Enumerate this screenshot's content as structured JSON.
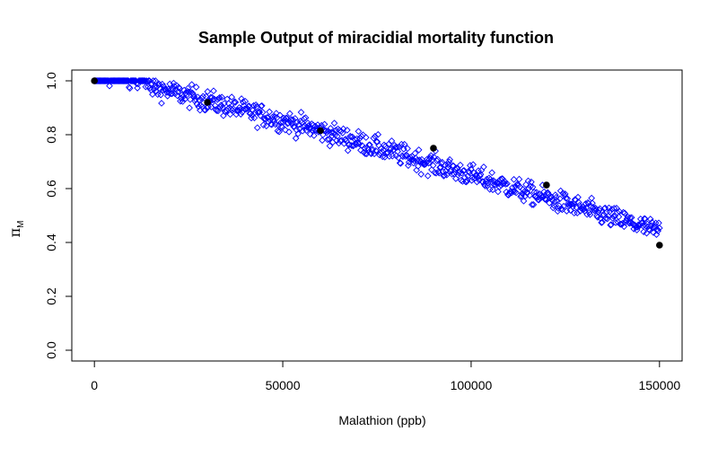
{
  "chart_data": {
    "type": "scatter",
    "title": "Sample Output of miracidial mortality function",
    "xlabel": "Malathion (ppb)",
    "ylabel": "π",
    "ylabel_subscript": "M",
    "xlim": [
      -6000,
      156000
    ],
    "ylim": [
      -0.04,
      1.04
    ],
    "xticks": [
      0,
      50000,
      100000,
      150000
    ],
    "yticks": [
      0.0,
      0.2,
      0.4,
      0.6,
      0.8,
      1.0
    ],
    "grid": false,
    "legend": "none",
    "colors": {
      "sample_points": "#0000ff",
      "mean_points": "#000000"
    },
    "mean_points": {
      "x": [
        0,
        30000,
        60000,
        90000,
        120000,
        150000
      ],
      "y": [
        1.0,
        0.92,
        0.815,
        0.75,
        0.613,
        0.39
      ]
    },
    "sample_trend": {
      "x": [
        0,
        14000,
        15000,
        30000,
        60000,
        90000,
        120000,
        150000
      ],
      "y": [
        1.0,
        1.0,
        0.98,
        0.925,
        0.815,
        0.69,
        0.565,
        0.44
      ]
    },
    "sample_count": 750,
    "sample_spread": 0.02
  }
}
